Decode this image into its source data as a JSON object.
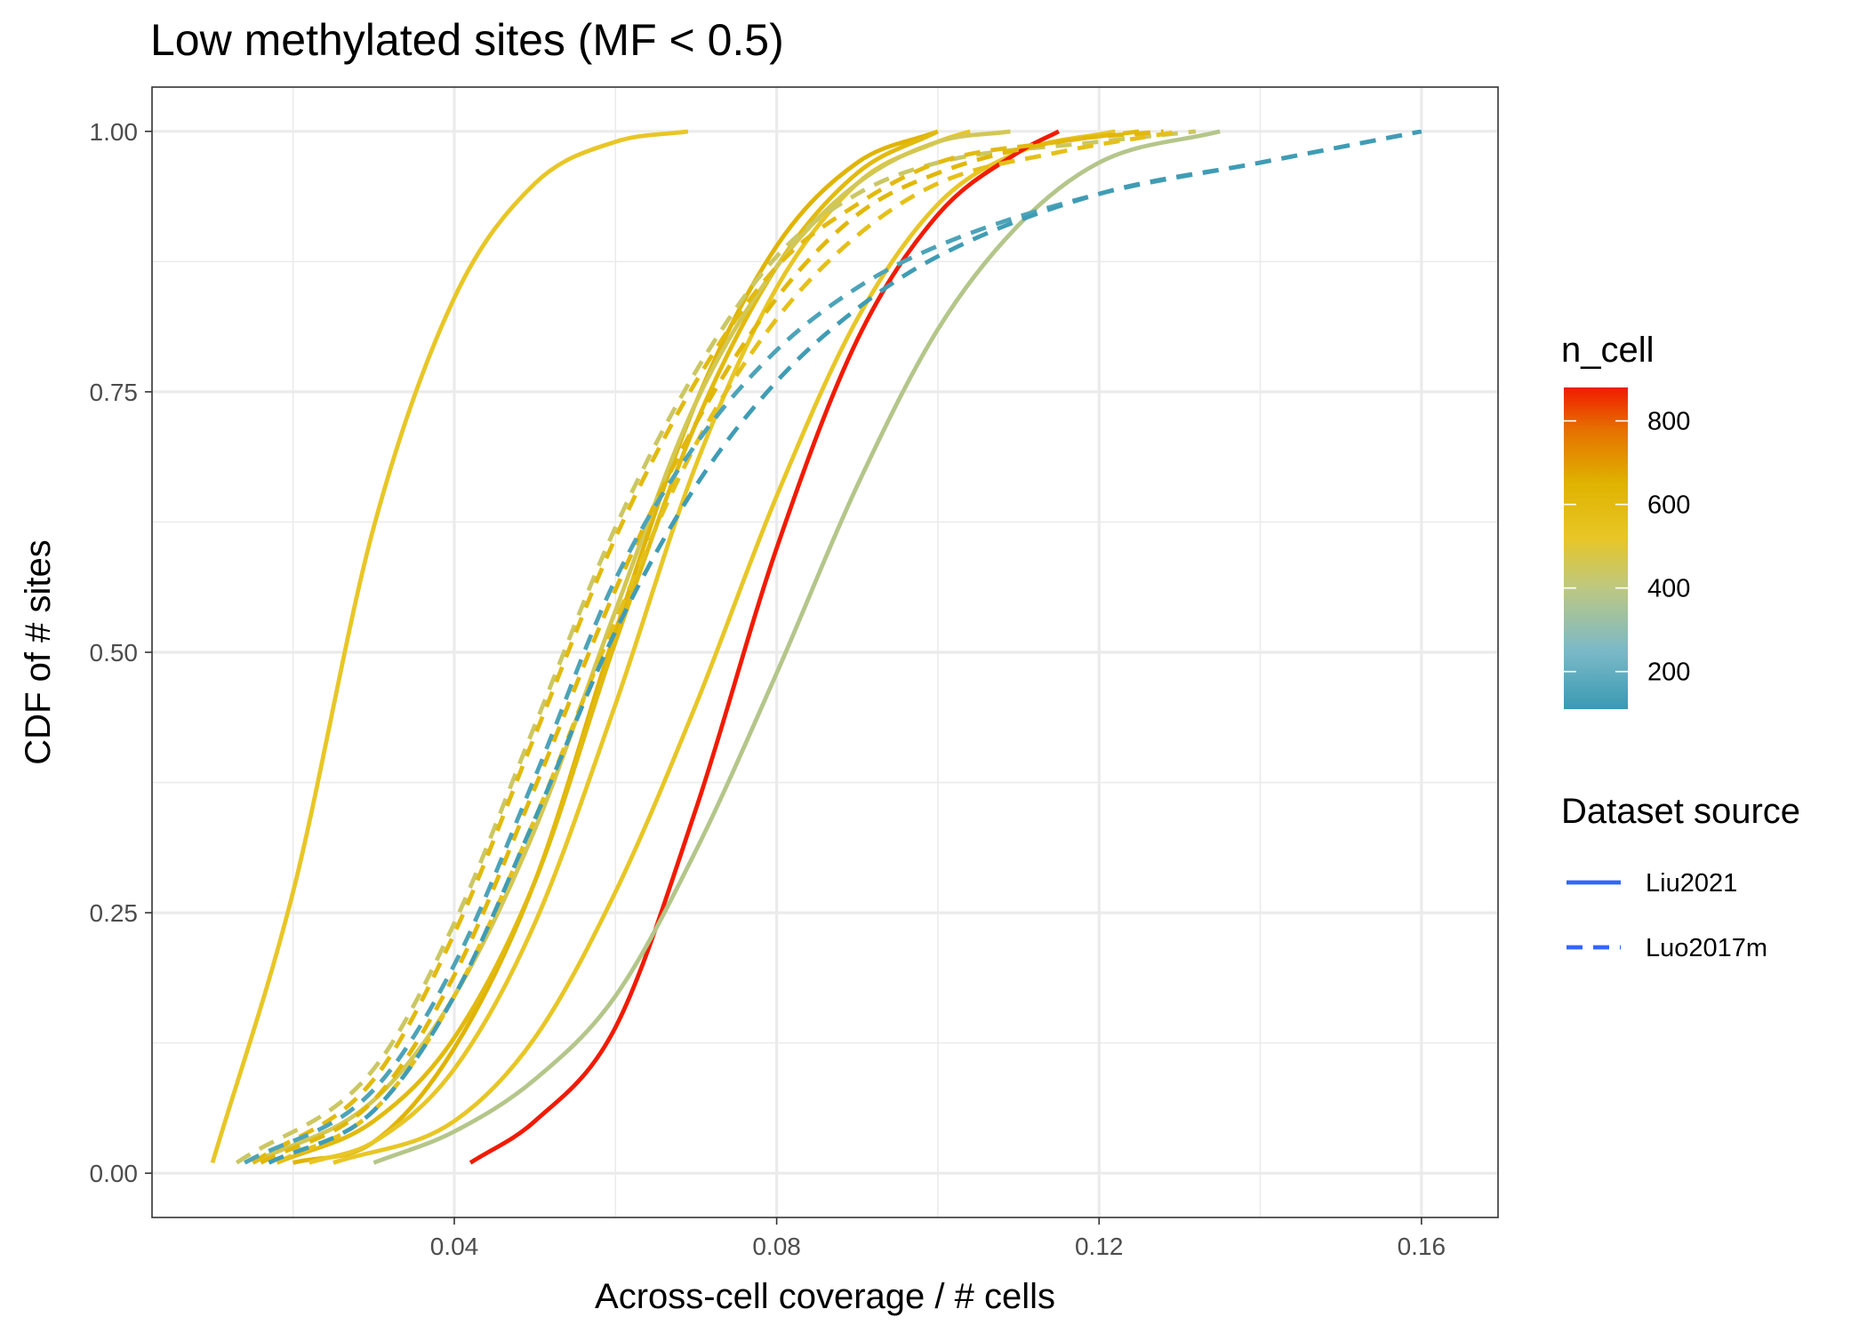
{
  "chart_data": {
    "type": "line",
    "title": "Low methylated sites (MF < 0.5)",
    "xlabel": "Across-cell coverage / # cells",
    "ylabel": "CDF of # sites",
    "xlim": [
      0.0025,
      0.1695
    ],
    "ylim": [
      -0.0425,
      1.0425
    ],
    "x_ticks": [
      0.04,
      0.08,
      0.12,
      0.16
    ],
    "x_tick_labels": [
      "0.04",
      "0.08",
      "0.12",
      "0.16"
    ],
    "y_ticks": [
      0.0,
      0.25,
      0.5,
      0.75,
      1.0
    ],
    "y_tick_labels": [
      "0.00",
      "0.25",
      "0.50",
      "0.75",
      "1.00"
    ],
    "grid": true,
    "legend_position": "right",
    "color_legend": {
      "title": "n_cell",
      "min": 110,
      "max": 880,
      "ticks": [
        200,
        400,
        600,
        800
      ],
      "tick_labels": [
        "200",
        "400",
        "600",
        "800"
      ],
      "stops": [
        {
          "value": 110,
          "color": "#3a9ab2"
        },
        {
          "value": 250,
          "color": "#7bb9c8"
        },
        {
          "value": 400,
          "color": "#bdc881"
        },
        {
          "value": 520,
          "color": "#e8c626"
        },
        {
          "value": 650,
          "color": "#dfb300"
        },
        {
          "value": 780,
          "color": "#e67000"
        },
        {
          "value": 880,
          "color": "#f11b00"
        }
      ]
    },
    "linetype_legend": {
      "title": "Dataset source",
      "entries": [
        {
          "label": "Liu2021",
          "dash": "solid"
        },
        {
          "label": "Luo2017m",
          "dash": "dashed"
        }
      ],
      "color": "#3366ff"
    },
    "series": [
      {
        "source": "Liu2021",
        "n_cell": 520,
        "x": [
          0.01,
          0.02,
          0.03,
          0.04,
          0.05,
          0.06,
          0.069
        ],
        "y": [
          0.01,
          0.27,
          0.62,
          0.84,
          0.95,
          0.99,
          1.0
        ]
      },
      {
        "source": "Liu2021",
        "n_cell": 640,
        "x": [
          0.02,
          0.03,
          0.04,
          0.05,
          0.06,
          0.07,
          0.08,
          0.09,
          0.1
        ],
        "y": [
          0.01,
          0.03,
          0.12,
          0.28,
          0.52,
          0.74,
          0.89,
          0.97,
          1.0
        ]
      },
      {
        "source": "Liu2021",
        "n_cell": 600,
        "x": [
          0.018,
          0.03,
          0.04,
          0.05,
          0.06,
          0.07,
          0.08,
          0.09,
          0.1
        ],
        "y": [
          0.01,
          0.05,
          0.13,
          0.28,
          0.51,
          0.72,
          0.87,
          0.96,
          1.0
        ]
      },
      {
        "source": "Liu2021",
        "n_cell": 520,
        "x": [
          0.022,
          0.03,
          0.04,
          0.05,
          0.06,
          0.07,
          0.08,
          0.09,
          0.1,
          0.104
        ],
        "y": [
          0.01,
          0.03,
          0.1,
          0.24,
          0.45,
          0.68,
          0.85,
          0.95,
          0.99,
          1.0
        ]
      },
      {
        "source": "Liu2021",
        "n_cell": 460,
        "x": [
          0.015,
          0.03,
          0.04,
          0.05,
          0.06,
          0.07,
          0.08,
          0.09,
          0.1,
          0.109
        ],
        "y": [
          0.01,
          0.07,
          0.17,
          0.33,
          0.54,
          0.74,
          0.87,
          0.95,
          0.99,
          1.0
        ]
      },
      {
        "source": "Liu2021",
        "n_cell": 520,
        "x": [
          0.025,
          0.04,
          0.05,
          0.06,
          0.07,
          0.08,
          0.09,
          0.1,
          0.11,
          0.122
        ],
        "y": [
          0.01,
          0.05,
          0.13,
          0.27,
          0.45,
          0.65,
          0.82,
          0.93,
          0.98,
          1.0
        ]
      },
      {
        "source": "Liu2021",
        "n_cell": 880,
        "x": [
          0.042,
          0.05,
          0.06,
          0.07,
          0.08,
          0.09,
          0.1,
          0.11,
          0.115
        ],
        "y": [
          0.01,
          0.05,
          0.14,
          0.35,
          0.6,
          0.8,
          0.92,
          0.98,
          1.0
        ]
      },
      {
        "source": "Liu2021",
        "n_cell": 380,
        "x": [
          0.03,
          0.04,
          0.05,
          0.06,
          0.07,
          0.08,
          0.09,
          0.1,
          0.11,
          0.12,
          0.135
        ],
        "y": [
          0.01,
          0.04,
          0.09,
          0.17,
          0.31,
          0.48,
          0.66,
          0.81,
          0.91,
          0.97,
          1.0
        ]
      },
      {
        "source": "Luo2017m",
        "n_cell": 440,
        "x": [
          0.013,
          0.03,
          0.04,
          0.05,
          0.06,
          0.07,
          0.08,
          0.09,
          0.1,
          0.12,
          0.132
        ],
        "y": [
          0.01,
          0.1,
          0.24,
          0.43,
          0.62,
          0.77,
          0.88,
          0.94,
          0.97,
          0.99,
          1.0
        ]
      },
      {
        "source": "Luo2017m",
        "n_cell": 600,
        "x": [
          0.015,
          0.03,
          0.04,
          0.05,
          0.06,
          0.07,
          0.08,
          0.09,
          0.1,
          0.115,
          0.125
        ],
        "y": [
          0.01,
          0.09,
          0.23,
          0.42,
          0.61,
          0.76,
          0.87,
          0.93,
          0.97,
          0.99,
          1.0
        ]
      },
      {
        "source": "Luo2017m",
        "n_cell": 620,
        "x": [
          0.016,
          0.03,
          0.04,
          0.05,
          0.06,
          0.07,
          0.08,
          0.09,
          0.1,
          0.115,
          0.128
        ],
        "y": [
          0.01,
          0.07,
          0.19,
          0.37,
          0.56,
          0.72,
          0.84,
          0.92,
          0.96,
          0.99,
          1.0
        ]
      },
      {
        "source": "Luo2017m",
        "n_cell": 560,
        "x": [
          0.018,
          0.03,
          0.04,
          0.05,
          0.06,
          0.07,
          0.08,
          0.09,
          0.1,
          0.115,
          0.13
        ],
        "y": [
          0.01,
          0.06,
          0.17,
          0.34,
          0.53,
          0.7,
          0.82,
          0.9,
          0.95,
          0.98,
          1.0
        ]
      },
      {
        "source": "Luo2017m",
        "n_cell": 150,
        "x": [
          0.014,
          0.03,
          0.04,
          0.05,
          0.06,
          0.07,
          0.08,
          0.09,
          0.1,
          0.12,
          0.14,
          0.16
        ],
        "y": [
          0.01,
          0.08,
          0.2,
          0.38,
          0.57,
          0.7,
          0.79,
          0.85,
          0.89,
          0.94,
          0.97,
          1.0
        ]
      },
      {
        "source": "Luo2017m",
        "n_cell": 120,
        "x": [
          0.017,
          0.03,
          0.04,
          0.05,
          0.06,
          0.07,
          0.08,
          0.09,
          0.1,
          0.12,
          0.14,
          0.16
        ],
        "y": [
          0.01,
          0.06,
          0.17,
          0.34,
          0.52,
          0.66,
          0.76,
          0.83,
          0.88,
          0.94,
          0.97,
          1.0
        ]
      }
    ]
  }
}
